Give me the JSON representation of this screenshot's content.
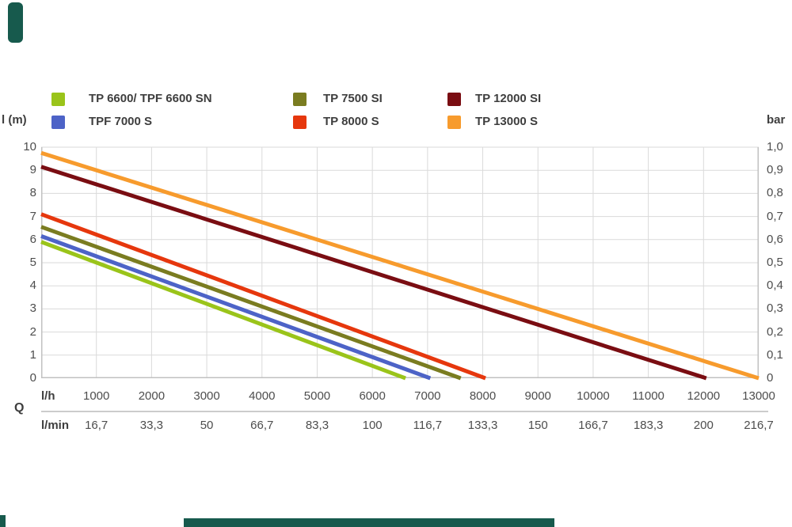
{
  "decor": {
    "color": "#175a4d"
  },
  "legend": {
    "items": [
      {
        "label": "TP 6600/ TPF 6600 SN",
        "color": "#9ac41a"
      },
      {
        "label": "TPF 7000 S",
        "color": "#4d63c7"
      },
      {
        "label": "TP 7500 SI",
        "color": "#7a7c20"
      },
      {
        "label": "TP 8000 S",
        "color": "#e6370d"
      },
      {
        "label": "TP 12000 SI",
        "color": "#7a0d12"
      },
      {
        "label": "TP 13000 S",
        "color": "#f79b2d"
      }
    ]
  },
  "axes": {
    "left_label": "l (m)",
    "right_label": "bar",
    "x_axis_symbol": "Q",
    "x_primary_label": "l/h",
    "x_secondary_label": "l/min",
    "left_ticks": [
      "10",
      "9",
      "8",
      "7",
      "6",
      "5",
      "4",
      "3",
      "2",
      "1",
      "0"
    ],
    "right_ticks": [
      "1,0",
      "0,9",
      "0,8",
      "0,7",
      "0,6",
      "0,5",
      "0,4",
      "0,3",
      "0,2",
      "0,1",
      "0"
    ],
    "x_primary_ticks": [
      "1000",
      "2000",
      "3000",
      "4000",
      "5000",
      "6000",
      "7000",
      "8000",
      "9000",
      "10000",
      "11000",
      "12000",
      "13000"
    ],
    "x_secondary_ticks": [
      "16,7",
      "33,3",
      "50",
      "66,7",
      "83,3",
      "100",
      "116,7",
      "133,3",
      "150",
      "166,7",
      "183,3",
      "200",
      "216,7"
    ],
    "grid_color": "#dadada",
    "border_color": "#c1c1c1"
  },
  "chart_data": {
    "type": "line",
    "title": "",
    "xlabel": "Q",
    "x_units": [
      "l/h",
      "l/min"
    ],
    "ylabel_left": "l (m)",
    "ylabel_right": "bar",
    "xlim": [
      0,
      13000
    ],
    "ylim_m": [
      0,
      10
    ],
    "ylim_bar": [
      0,
      1.0
    ],
    "grid": true,
    "legend_position": "top",
    "series": [
      {
        "name": "TP 6600/ TPF 6600 SN",
        "color": "#9ac41a",
        "points": [
          [
            0,
            5.9
          ],
          [
            6600,
            0
          ]
        ]
      },
      {
        "name": "TPF 7000 S",
        "color": "#4d63c7",
        "points": [
          [
            0,
            6.15
          ],
          [
            7050,
            0
          ]
        ]
      },
      {
        "name": "TP 7500 SI",
        "color": "#7a7c20",
        "points": [
          [
            0,
            6.55
          ],
          [
            7600,
            0
          ]
        ]
      },
      {
        "name": "TP 8000 S",
        "color": "#e6370d",
        "points": [
          [
            0,
            7.1
          ],
          [
            8050,
            0
          ]
        ]
      },
      {
        "name": "TP 12000 SI",
        "color": "#7a0d12",
        "points": [
          [
            0,
            9.15
          ],
          [
            12050,
            0
          ]
        ]
      },
      {
        "name": "TP 13000 S",
        "color": "#f79b2d",
        "points": [
          [
            0,
            9.75
          ],
          [
            13000,
            0
          ]
        ]
      }
    ]
  }
}
